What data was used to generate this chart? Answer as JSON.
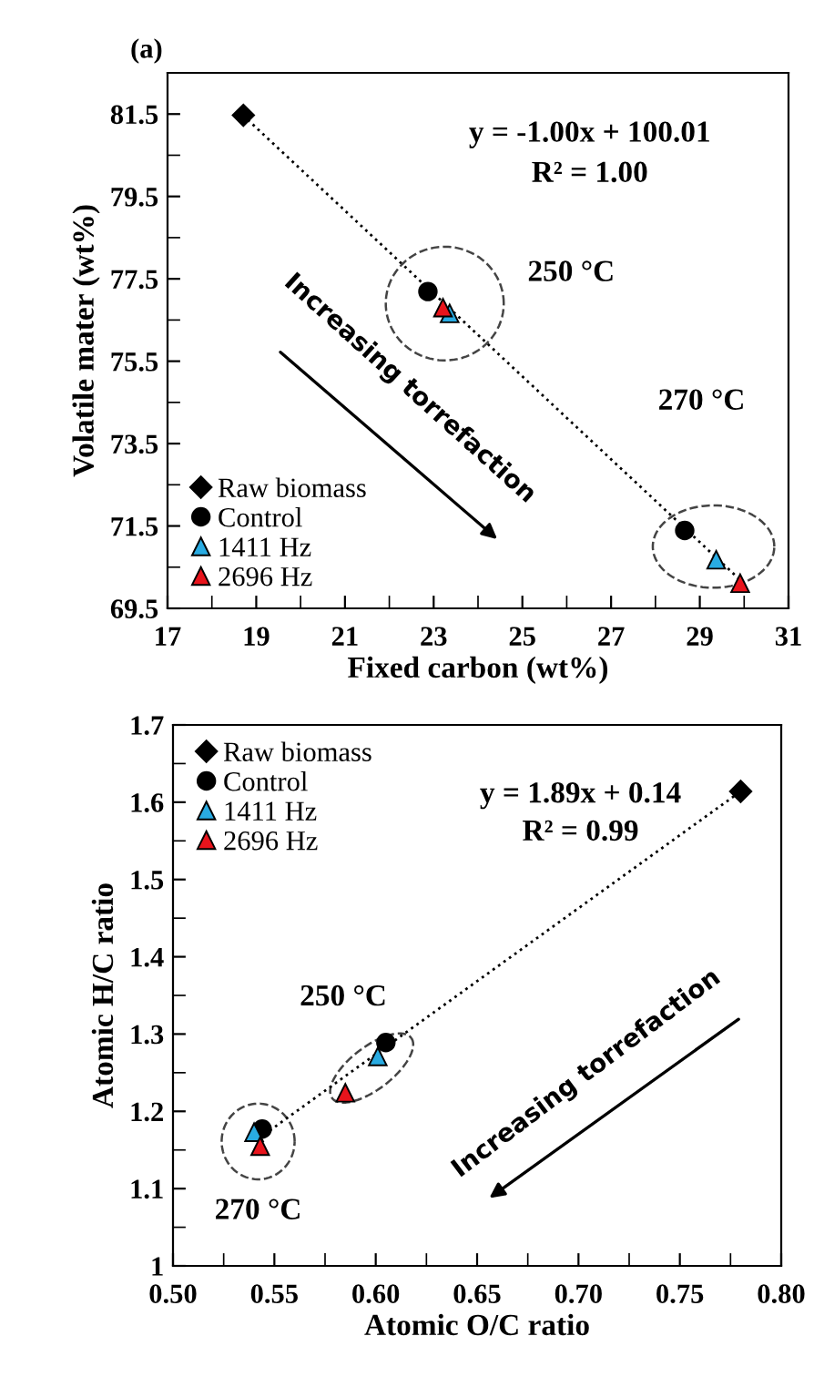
{
  "chart_data": [
    {
      "type": "scatter",
      "title": "(a)",
      "xlabel": "Fixed carbon (wt%)",
      "ylabel": "Volatile mater (wt%)",
      "xlim": [
        17,
        31
      ],
      "ylim": [
        69.5,
        82.5
      ],
      "xticks": [
        17,
        {
          "value": 18,
          "label": null
        },
        19,
        {
          "value": 20,
          "label": null
        },
        21,
        {
          "value": 22,
          "label": null
        },
        23,
        {
          "value": 24,
          "label": null
        },
        25,
        {
          "value": 26,
          "label": null
        },
        27,
        {
          "value": 28,
          "label": null
        },
        29,
        {
          "value": 30,
          "label": null
        },
        31
      ],
      "yticks": [
        69.5,
        {
          "value": 70.5,
          "label": null
        },
        71.5,
        {
          "value": 72.5,
          "label": null
        },
        73.5,
        {
          "value": 74.5,
          "label": null
        },
        75.5,
        {
          "value": 76.5,
          "label": null
        },
        77.5,
        {
          "value": 78.5,
          "label": null
        },
        79.5,
        {
          "value": 80.5,
          "label": null
        },
        81.5
      ],
      "grid": false,
      "legend": "bottom left",
      "series": [
        {
          "type": "line",
          "color": "#000000",
          "line_style": "dotted",
          "marker": "none",
          "x": [
            18.7,
            30.0
          ],
          "values": [
            81.47,
            70.1
          ]
        },
        {
          "name": "Raw biomass",
          "color": "#000000",
          "marker": "diamond",
          "x": [
            18.71
          ],
          "values": [
            81.47
          ]
        },
        {
          "name": "Control",
          "color": "#000000",
          "marker": "circle",
          "x": [
            22.87,
            28.66
          ],
          "values": [
            77.19,
            71.39
          ]
        },
        {
          "name": "1411 Hz",
          "color": "#29abe2",
          "marker": "triangle",
          "x": [
            23.36,
            29.37
          ],
          "values": [
            76.66,
            70.68
          ]
        },
        {
          "name": "2696 Hz",
          "color": "#e8141c",
          "marker": "triangle",
          "x": [
            23.21,
            29.91
          ],
          "values": [
            76.8,
            70.11
          ]
        }
      ],
      "annotations": [
        "y = -1.00x + 100.01",
        "R² = 1.00",
        "250 °C",
        "270 °C",
        "Increasing torrefaction"
      ]
    },
    {
      "type": "scatter",
      "xlabel": "Atomic O/C ratio",
      "ylabel": "Atomic H/C ratio",
      "xlim": [
        0.5,
        0.8
      ],
      "ylim": [
        1,
        1.7
      ],
      "xticks": [
        {
          "value": 0.5,
          "label": "0.50"
        },
        {
          "value": 0.525,
          "label": null
        },
        {
          "value": 0.55,
          "label": "0.55"
        },
        {
          "value": 0.575,
          "label": null
        },
        {
          "value": 0.6,
          "label": "0.60"
        },
        {
          "value": 0.625,
          "label": null
        },
        {
          "value": 0.65,
          "label": "0.65"
        },
        {
          "value": 0.675,
          "label": null
        },
        {
          "value": 0.7,
          "label": "0.70"
        },
        {
          "value": 0.725,
          "label": null
        },
        {
          "value": 0.75,
          "label": "0.75"
        },
        {
          "value": 0.775,
          "label": null
        },
        {
          "value": 0.8,
          "label": "0.80"
        }
      ],
      "yticks": [
        1,
        {
          "value": 1.05,
          "label": null
        },
        1.1,
        {
          "value": 1.15,
          "label": null
        },
        1.2,
        {
          "value": 1.25,
          "label": null
        },
        1.3,
        {
          "value": 1.35,
          "label": null
        },
        1.4,
        {
          "value": 1.45,
          "label": null
        },
        1.5,
        {
          "value": 1.55,
          "label": null
        },
        1.6,
        {
          "value": 1.65,
          "label": null
        },
        1.7
      ],
      "grid": false,
      "legend": "top left",
      "series": [
        {
          "type": "line",
          "color": "#000000",
          "line_style": "dotted",
          "marker": "none",
          "x": [
            0.545,
            0.78
          ],
          "values": [
            1.17,
            1.614
          ]
        },
        {
          "name": "Raw biomass",
          "color": "#000000",
          "marker": "diamond",
          "x": [
            0.78
          ],
          "values": [
            1.614
          ]
        },
        {
          "name": "Control",
          "color": "#000000",
          "marker": "circle",
          "x": [
            0.605,
            0.544
          ],
          "values": [
            1.289,
            1.177
          ]
        },
        {
          "name": "1411 Hz",
          "color": "#29abe2",
          "marker": "triangle",
          "x": [
            0.601,
            0.54
          ],
          "values": [
            1.271,
            1.173
          ]
        },
        {
          "name": "2696 Hz",
          "color": "#e8141c",
          "marker": "triangle",
          "x": [
            0.585,
            0.543
          ],
          "values": [
            1.224,
            1.155
          ]
        }
      ],
      "annotations": [
        "y = 1.89x + 0.14",
        "R² = 0.99",
        "250 °C",
        "270 °C",
        "Increasing torrefaction"
      ]
    }
  ]
}
